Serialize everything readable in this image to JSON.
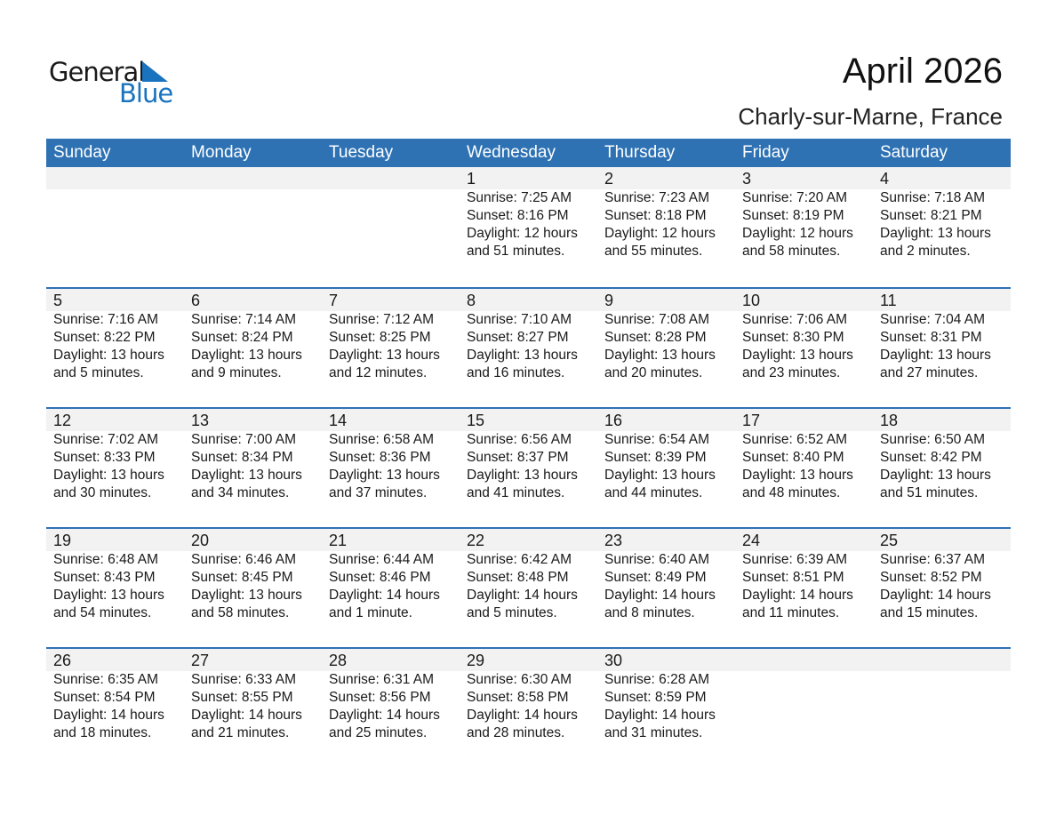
{
  "logo": {
    "line1": "General",
    "line2": "Blue"
  },
  "header": {
    "title": "April 2026",
    "location": "Charly-sur-Marne, France"
  },
  "weekdays": [
    "Sunday",
    "Monday",
    "Tuesday",
    "Wednesday",
    "Thursday",
    "Friday",
    "Saturday"
  ],
  "weeks": [
    [
      null,
      null,
      null,
      {
        "day": "1",
        "sunrise": "Sunrise: 7:25 AM",
        "sunset": "Sunset: 8:16 PM",
        "daylight1": "Daylight: 12 hours",
        "daylight2": "and 51 minutes."
      },
      {
        "day": "2",
        "sunrise": "Sunrise: 7:23 AM",
        "sunset": "Sunset: 8:18 PM",
        "daylight1": "Daylight: 12 hours",
        "daylight2": "and 55 minutes."
      },
      {
        "day": "3",
        "sunrise": "Sunrise: 7:20 AM",
        "sunset": "Sunset: 8:19 PM",
        "daylight1": "Daylight: 12 hours",
        "daylight2": "and 58 minutes."
      },
      {
        "day": "4",
        "sunrise": "Sunrise: 7:18 AM",
        "sunset": "Sunset: 8:21 PM",
        "daylight1": "Daylight: 13 hours",
        "daylight2": "and 2 minutes."
      }
    ],
    [
      {
        "day": "5",
        "sunrise": "Sunrise: 7:16 AM",
        "sunset": "Sunset: 8:22 PM",
        "daylight1": "Daylight: 13 hours",
        "daylight2": "and 5 minutes."
      },
      {
        "day": "6",
        "sunrise": "Sunrise: 7:14 AM",
        "sunset": "Sunset: 8:24 PM",
        "daylight1": "Daylight: 13 hours",
        "daylight2": "and 9 minutes."
      },
      {
        "day": "7",
        "sunrise": "Sunrise: 7:12 AM",
        "sunset": "Sunset: 8:25 PM",
        "daylight1": "Daylight: 13 hours",
        "daylight2": "and 12 minutes."
      },
      {
        "day": "8",
        "sunrise": "Sunrise: 7:10 AM",
        "sunset": "Sunset: 8:27 PM",
        "daylight1": "Daylight: 13 hours",
        "daylight2": "and 16 minutes."
      },
      {
        "day": "9",
        "sunrise": "Sunrise: 7:08 AM",
        "sunset": "Sunset: 8:28 PM",
        "daylight1": "Daylight: 13 hours",
        "daylight2": "and 20 minutes."
      },
      {
        "day": "10",
        "sunrise": "Sunrise: 7:06 AM",
        "sunset": "Sunset: 8:30 PM",
        "daylight1": "Daylight: 13 hours",
        "daylight2": "and 23 minutes."
      },
      {
        "day": "11",
        "sunrise": "Sunrise: 7:04 AM",
        "sunset": "Sunset: 8:31 PM",
        "daylight1": "Daylight: 13 hours",
        "daylight2": "and 27 minutes."
      }
    ],
    [
      {
        "day": "12",
        "sunrise": "Sunrise: 7:02 AM",
        "sunset": "Sunset: 8:33 PM",
        "daylight1": "Daylight: 13 hours",
        "daylight2": "and 30 minutes."
      },
      {
        "day": "13",
        "sunrise": "Sunrise: 7:00 AM",
        "sunset": "Sunset: 8:34 PM",
        "daylight1": "Daylight: 13 hours",
        "daylight2": "and 34 minutes."
      },
      {
        "day": "14",
        "sunrise": "Sunrise: 6:58 AM",
        "sunset": "Sunset: 8:36 PM",
        "daylight1": "Daylight: 13 hours",
        "daylight2": "and 37 minutes."
      },
      {
        "day": "15",
        "sunrise": "Sunrise: 6:56 AM",
        "sunset": "Sunset: 8:37 PM",
        "daylight1": "Daylight: 13 hours",
        "daylight2": "and 41 minutes."
      },
      {
        "day": "16",
        "sunrise": "Sunrise: 6:54 AM",
        "sunset": "Sunset: 8:39 PM",
        "daylight1": "Daylight: 13 hours",
        "daylight2": "and 44 minutes."
      },
      {
        "day": "17",
        "sunrise": "Sunrise: 6:52 AM",
        "sunset": "Sunset: 8:40 PM",
        "daylight1": "Daylight: 13 hours",
        "daylight2": "and 48 minutes."
      },
      {
        "day": "18",
        "sunrise": "Sunrise: 6:50 AM",
        "sunset": "Sunset: 8:42 PM",
        "daylight1": "Daylight: 13 hours",
        "daylight2": "and 51 minutes."
      }
    ],
    [
      {
        "day": "19",
        "sunrise": "Sunrise: 6:48 AM",
        "sunset": "Sunset: 8:43 PM",
        "daylight1": "Daylight: 13 hours",
        "daylight2": "and 54 minutes."
      },
      {
        "day": "20",
        "sunrise": "Sunrise: 6:46 AM",
        "sunset": "Sunset: 8:45 PM",
        "daylight1": "Daylight: 13 hours",
        "daylight2": "and 58 minutes."
      },
      {
        "day": "21",
        "sunrise": "Sunrise: 6:44 AM",
        "sunset": "Sunset: 8:46 PM",
        "daylight1": "Daylight: 14 hours",
        "daylight2": "and 1 minute."
      },
      {
        "day": "22",
        "sunrise": "Sunrise: 6:42 AM",
        "sunset": "Sunset: 8:48 PM",
        "daylight1": "Daylight: 14 hours",
        "daylight2": "and 5 minutes."
      },
      {
        "day": "23",
        "sunrise": "Sunrise: 6:40 AM",
        "sunset": "Sunset: 8:49 PM",
        "daylight1": "Daylight: 14 hours",
        "daylight2": "and 8 minutes."
      },
      {
        "day": "24",
        "sunrise": "Sunrise: 6:39 AM",
        "sunset": "Sunset: 8:51 PM",
        "daylight1": "Daylight: 14 hours",
        "daylight2": "and 11 minutes."
      },
      {
        "day": "25",
        "sunrise": "Sunrise: 6:37 AM",
        "sunset": "Sunset: 8:52 PM",
        "daylight1": "Daylight: 14 hours",
        "daylight2": "and 15 minutes."
      }
    ],
    [
      {
        "day": "26",
        "sunrise": "Sunrise: 6:35 AM",
        "sunset": "Sunset: 8:54 PM",
        "daylight1": "Daylight: 14 hours",
        "daylight2": "and 18 minutes."
      },
      {
        "day": "27",
        "sunrise": "Sunrise: 6:33 AM",
        "sunset": "Sunset: 8:55 PM",
        "daylight1": "Daylight: 14 hours",
        "daylight2": "and 21 minutes."
      },
      {
        "day": "28",
        "sunrise": "Sunrise: 6:31 AM",
        "sunset": "Sunset: 8:56 PM",
        "daylight1": "Daylight: 14 hours",
        "daylight2": "and 25 minutes."
      },
      {
        "day": "29",
        "sunrise": "Sunrise: 6:30 AM",
        "sunset": "Sunset: 8:58 PM",
        "daylight1": "Daylight: 14 hours",
        "daylight2": "and 28 minutes."
      },
      {
        "day": "30",
        "sunrise": "Sunrise: 6:28 AM",
        "sunset": "Sunset: 8:59 PM",
        "daylight1": "Daylight: 14 hours",
        "daylight2": "and 31 minutes."
      },
      null,
      null
    ]
  ]
}
